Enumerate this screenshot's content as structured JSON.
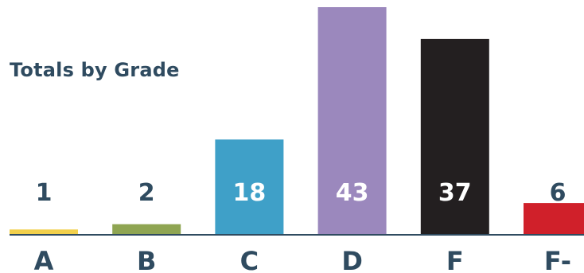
{
  "chart_data": {
    "type": "bar",
    "title": "Totals by Grade",
    "xlabel": "",
    "ylabel": "",
    "categories": [
      "A",
      "B",
      "C",
      "D",
      "F",
      "F-"
    ],
    "values": [
      1,
      2,
      18,
      43,
      37,
      6
    ],
    "bar_colors": [
      "#f2d04c",
      "#8fa552",
      "#3fa0c8",
      "#9b88bd",
      "#231f20",
      "#d0202a"
    ],
    "label_colors": [
      "#2f4b60",
      "#2f4b60",
      "#ffffff",
      "#ffffff",
      "#ffffff",
      "#2f4b60"
    ],
    "axis_color": "#2f4b60",
    "ylim": [
      0,
      43
    ],
    "grid": false,
    "legend": "none"
  }
}
